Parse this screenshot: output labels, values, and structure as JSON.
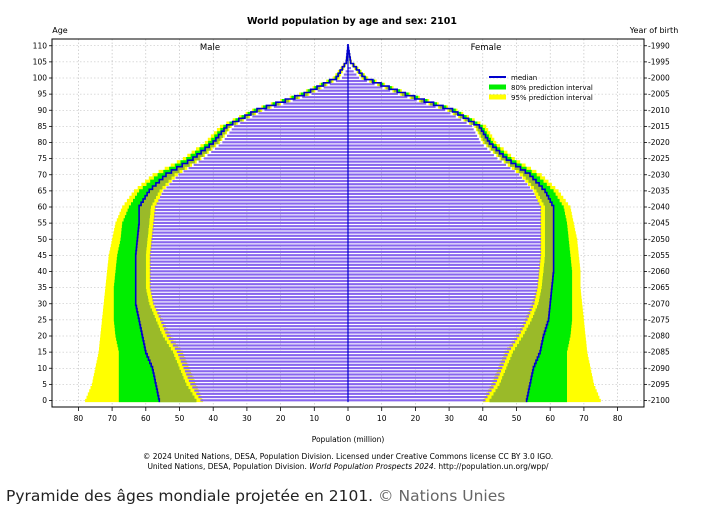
{
  "chart_data": {
    "type": "population-pyramid",
    "title": "World population by age and sex: 2101",
    "y_left_label": "Age",
    "y_right_label": "Year of birth",
    "xlabel": "Population (million)",
    "xlim": [
      -90,
      90
    ],
    "ylim": [
      0,
      110
    ],
    "x_tick_values": [
      -80,
      -70,
      -60,
      -50,
      -40,
      -30,
      -20,
      -10,
      0,
      10,
      20,
      30,
      40,
      50,
      60,
      70,
      80
    ],
    "x_tick_labels": [
      "80",
      "70",
      "60",
      "50",
      "40",
      "30",
      "20",
      "10",
      "0",
      "10",
      "20",
      "30",
      "40",
      "50",
      "60",
      "70",
      "80"
    ],
    "age_ticks": [
      0,
      5,
      10,
      15,
      20,
      25,
      30,
      35,
      40,
      45,
      50,
      55,
      60,
      65,
      70,
      75,
      80,
      85,
      90,
      95,
      100,
      105,
      110
    ],
    "year_ticks": [
      "2100",
      "2095",
      "2090",
      "2085",
      "2080",
      "2075",
      "2070",
      "2065",
      "2060",
      "2055",
      "2050",
      "2045",
      "2040",
      "2035",
      "2030",
      "2025",
      "2020",
      "2015",
      "2010",
      "2005",
      "2000",
      "1995",
      "1990"
    ],
    "sex_labels": {
      "male": "Male",
      "female": "Female"
    },
    "legend": [
      {
        "key": "median",
        "label": "median",
        "color": "#0000cc"
      },
      {
        "key": "pi80",
        "label": "80% prediction interval",
        "color": "#00ee00"
      },
      {
        "key": "pi95",
        "label": "95% prediction interval",
        "color": "#ffff00"
      }
    ],
    "legend_position": "top-right",
    "grid": true,
    "bar_color": "#8866ee",
    "band_overlap_color": "#b5b030",
    "ages": [
      0,
      5,
      10,
      15,
      20,
      25,
      30,
      35,
      40,
      45,
      50,
      55,
      60,
      65,
      70,
      75,
      80,
      85,
      90,
      95,
      100,
      105,
      110
    ],
    "male": {
      "median": [
        56,
        57,
        58,
        60,
        61,
        62,
        63,
        63,
        63,
        63,
        62.5,
        62,
        62,
        59,
        54,
        46,
        40,
        36,
        27,
        13,
        3.5,
        0.5,
        0
      ],
      "pi80_low": [
        45,
        48,
        50,
        52,
        55,
        57,
        59,
        60,
        60,
        60,
        59.5,
        59,
        58.5,
        56,
        51.5,
        44,
        38.5,
        35,
        26,
        12,
        3,
        0.3,
        0
      ],
      "pi80_high": [
        68,
        68,
        68,
        68,
        69,
        69.5,
        69.5,
        69.5,
        69,
        68.5,
        67.5,
        67,
        65,
        62,
        56.5,
        48,
        41.5,
        37,
        28,
        14,
        4,
        0.6,
        0
      ],
      "pi95_low": [
        43,
        45,
        47,
        49,
        52.5,
        55,
        57.5,
        58.5,
        58.5,
        58.5,
        58,
        57.5,
        57,
        55,
        50.5,
        43.5,
        38,
        34.5,
        25.5,
        11.5,
        2.5,
        0.2,
        0
      ],
      "pi95_high": [
        78,
        76,
        75,
        74,
        73.5,
        73,
        72.5,
        72,
        71.5,
        71,
        70,
        69,
        67,
        63.5,
        58,
        49,
        42.5,
        38,
        28.5,
        14.5,
        4.5,
        0.8,
        0
      ]
    },
    "female": {
      "median": [
        53,
        54,
        55,
        57,
        58,
        59.5,
        60,
        60.5,
        61,
        61,
        61,
        61,
        61,
        58.5,
        54,
        47,
        42,
        39,
        31,
        17,
        5,
        0.8,
        0
      ],
      "pi80_low": [
        42,
        45,
        47,
        49,
        52,
        54.5,
        56.5,
        57.5,
        58,
        58.5,
        58.5,
        58.5,
        58.5,
        56,
        52,
        45.5,
        40.5,
        38,
        30,
        16,
        4.5,
        0.5,
        0
      ],
      "pi80_high": [
        65,
        65,
        65,
        65,
        66,
        66.5,
        66.5,
        66.5,
        66.5,
        66,
        65.5,
        65,
        64,
        61,
        56,
        48.5,
        43,
        40,
        32,
        18,
        5.5,
        1,
        0
      ],
      "pi95_low": [
        40,
        42.5,
        44.5,
        46.5,
        50,
        52.5,
        54.5,
        56,
        56.5,
        57,
        57,
        57,
        57,
        55,
        51,
        45,
        40,
        37.5,
        29.5,
        15.5,
        4,
        0.4,
        0
      ],
      "pi95_high": [
        75,
        73,
        72,
        71,
        70.5,
        70,
        69.5,
        69,
        69,
        68.5,
        68,
        67,
        66,
        62.5,
        57.5,
        49.5,
        44,
        41,
        32.5,
        18.5,
        6,
        1.2,
        0
      ]
    }
  },
  "footer": {
    "line1": "© 2024 United Nations, DESA, Population Division. Licensed under Creative Commons license CC BY 3.0 IGO.",
    "line2_prefix": "United Nations, DESA, Population Division. ",
    "line2_italic": "World Population Prospects 2024",
    "line2_suffix": ". http://population.un.org/wpp/"
  },
  "caption": {
    "text": "Pyramide des âges mondiale projetée en 2101.",
    "credit": "© Nations Unies"
  }
}
